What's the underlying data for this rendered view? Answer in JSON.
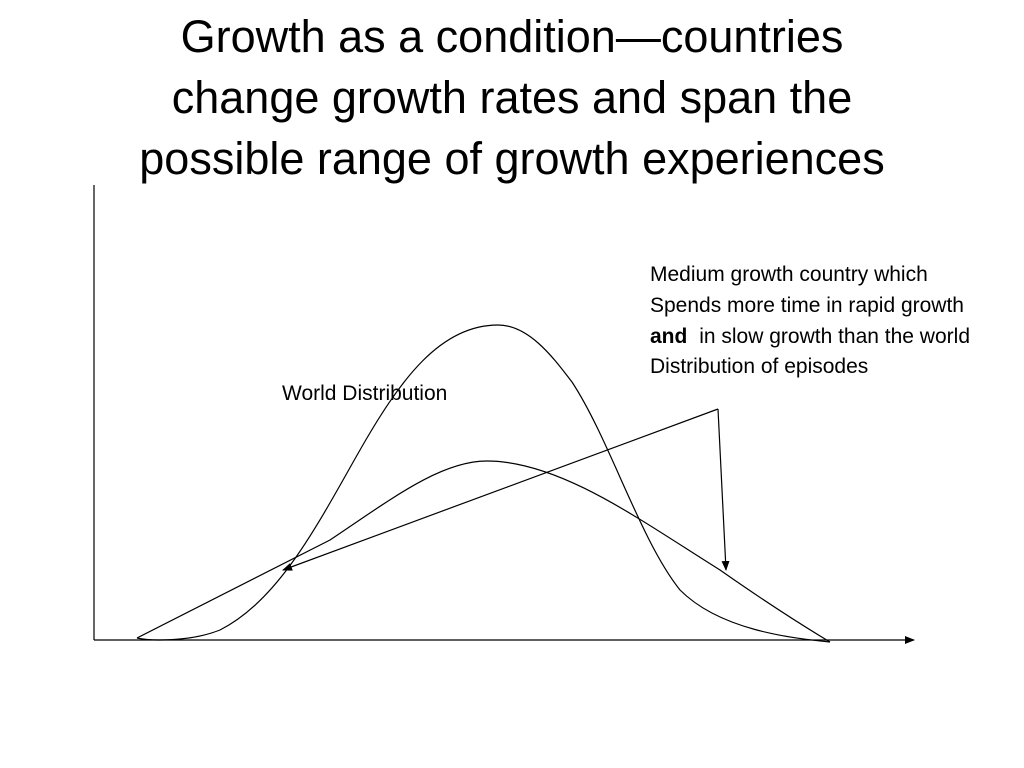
{
  "title_lines": [
    "Growth as a condition—countries",
    "change growth rates and span the",
    "possible range of growth experiences"
  ],
  "world_label": "World Distribution",
  "annotation": {
    "line1": "Medium growth country which",
    "line2": "Spends more time in rapid growth",
    "line3_bold": "and",
    "line3_rest": "in slow growth than the world",
    "line4": "Distribution of episodes"
  }
}
